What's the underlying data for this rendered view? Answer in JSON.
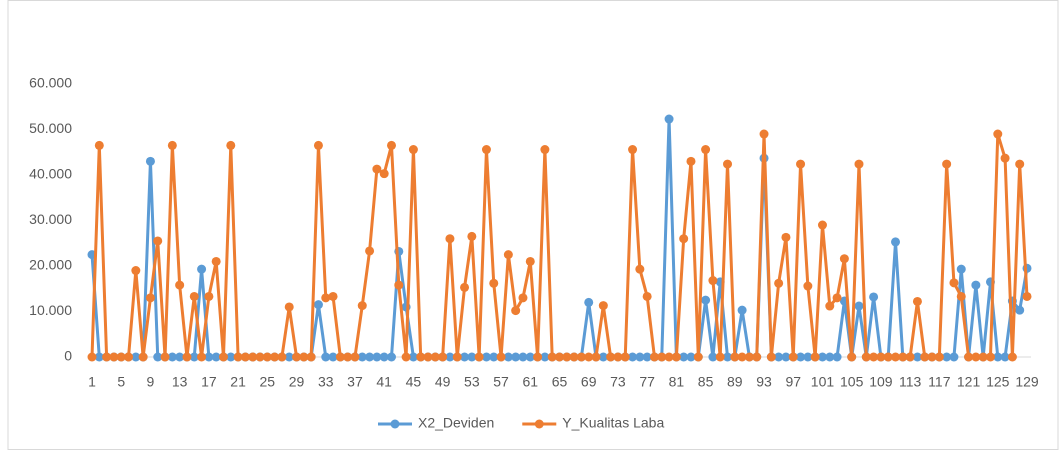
{
  "chart_data": {
    "type": "line",
    "categories": [
      "1",
      null,
      null,
      null,
      "5",
      null,
      null,
      null,
      "9",
      null,
      null,
      null,
      "13",
      null,
      null,
      null,
      "17",
      null,
      null,
      null,
      "21",
      null,
      null,
      null,
      "25",
      null,
      null,
      null,
      "29",
      null,
      null,
      null,
      "33",
      null,
      null,
      null,
      "37",
      null,
      null,
      null,
      "41",
      null,
      null,
      null,
      "45",
      null,
      null,
      null,
      "49",
      null,
      null,
      null,
      "53",
      null,
      null,
      null,
      "57",
      null,
      null,
      null,
      "61",
      null,
      null,
      null,
      "65",
      null,
      null,
      null,
      "69",
      null,
      null,
      null,
      "73",
      null,
      null,
      null,
      "77",
      null,
      null,
      null,
      "81",
      null,
      null,
      null,
      "85",
      null,
      null,
      null,
      "89",
      null,
      null,
      null,
      "93",
      null,
      null,
      null,
      "97",
      null,
      null,
      null,
      "101",
      null,
      null,
      null,
      "105",
      null,
      null,
      null,
      "109",
      null,
      null,
      null,
      "113",
      null,
      null,
      null,
      "117",
      null,
      null,
      null,
      "121",
      null,
      null,
      null,
      "125",
      null,
      null,
      null,
      "129"
    ],
    "series": [
      {
        "name": "X2_Deviden",
        "color": "#5b9bd5",
        "values": [
          22500,
          0,
          0,
          0,
          0,
          0,
          0,
          0,
          43000,
          0,
          0,
          0,
          0,
          0,
          0,
          19300,
          0,
          0,
          0,
          0,
          0,
          0,
          0,
          0,
          0,
          0,
          0,
          0,
          0,
          0,
          0,
          11500,
          0,
          0,
          0,
          0,
          0,
          0,
          0,
          0,
          0,
          0,
          23200,
          11000,
          0,
          0,
          0,
          0,
          0,
          0,
          0,
          0,
          0,
          0,
          0,
          0,
          0,
          0,
          0,
          0,
          0,
          0,
          0,
          0,
          0,
          0,
          0,
          0,
          12000,
          0,
          0,
          0,
          0,
          0,
          0,
          0,
          0,
          0,
          0,
          52300,
          0,
          0,
          0,
          0,
          12500,
          0,
          16500,
          0,
          0,
          10300,
          0,
          0,
          43700,
          0,
          0,
          0,
          0,
          0,
          0,
          0,
          0,
          0,
          0,
          12300,
          0,
          11200,
          0,
          13200,
          0,
          0,
          25300,
          0,
          0,
          0,
          0,
          0,
          0,
          0,
          0,
          19300,
          0,
          15800,
          0,
          16500,
          0,
          0,
          12300,
          10300,
          19500
        ]
      },
      {
        "name": "Y_Kualitas Laba",
        "color": "#ed7d31",
        "values": [
          0,
          46500,
          0,
          0,
          0,
          0,
          19000,
          0,
          13000,
          25500,
          0,
          46500,
          15800,
          0,
          13300,
          0,
          13300,
          21000,
          0,
          46500,
          0,
          0,
          0,
          0,
          0,
          0,
          0,
          11000,
          0,
          0,
          0,
          46500,
          13000,
          13300,
          0,
          0,
          0,
          11300,
          23300,
          41300,
          40300,
          46500,
          15800,
          0,
          45600,
          0,
          0,
          0,
          0,
          26000,
          0,
          15300,
          26500,
          0,
          45600,
          16200,
          0,
          22500,
          10200,
          13000,
          21000,
          0,
          45600,
          0,
          0,
          0,
          0,
          0,
          0,
          0,
          11300,
          0,
          0,
          0,
          45600,
          19300,
          13300,
          0,
          0,
          0,
          0,
          26000,
          43000,
          0,
          45600,
          16800,
          0,
          42400,
          0,
          0,
          0,
          0,
          49000,
          0,
          16200,
          26300,
          0,
          42400,
          15600,
          0,
          29000,
          11200,
          13000,
          21600,
          0,
          42400,
          0,
          0,
          0,
          0,
          0,
          0,
          0,
          12200,
          0,
          0,
          0,
          42400,
          16300,
          13300,
          0,
          0,
          0,
          0,
          49000,
          43700,
          0,
          42400,
          13300
        ]
      }
    ],
    "ylim": [
      0,
      60000
    ],
    "yticks": [
      0,
      {
        "value": 10000,
        "label": "10.000"
      },
      {
        "value": 20000,
        "label": "20.000"
      },
      {
        "value": 30000,
        "label": "30.000"
      },
      {
        "value": 40000,
        "label": "40.000"
      },
      {
        "value": 50000,
        "label": "50.000"
      },
      {
        "value": 60000,
        "label": "60.000"
      }
    ],
    "grid": false,
    "legend": "bottom"
  }
}
